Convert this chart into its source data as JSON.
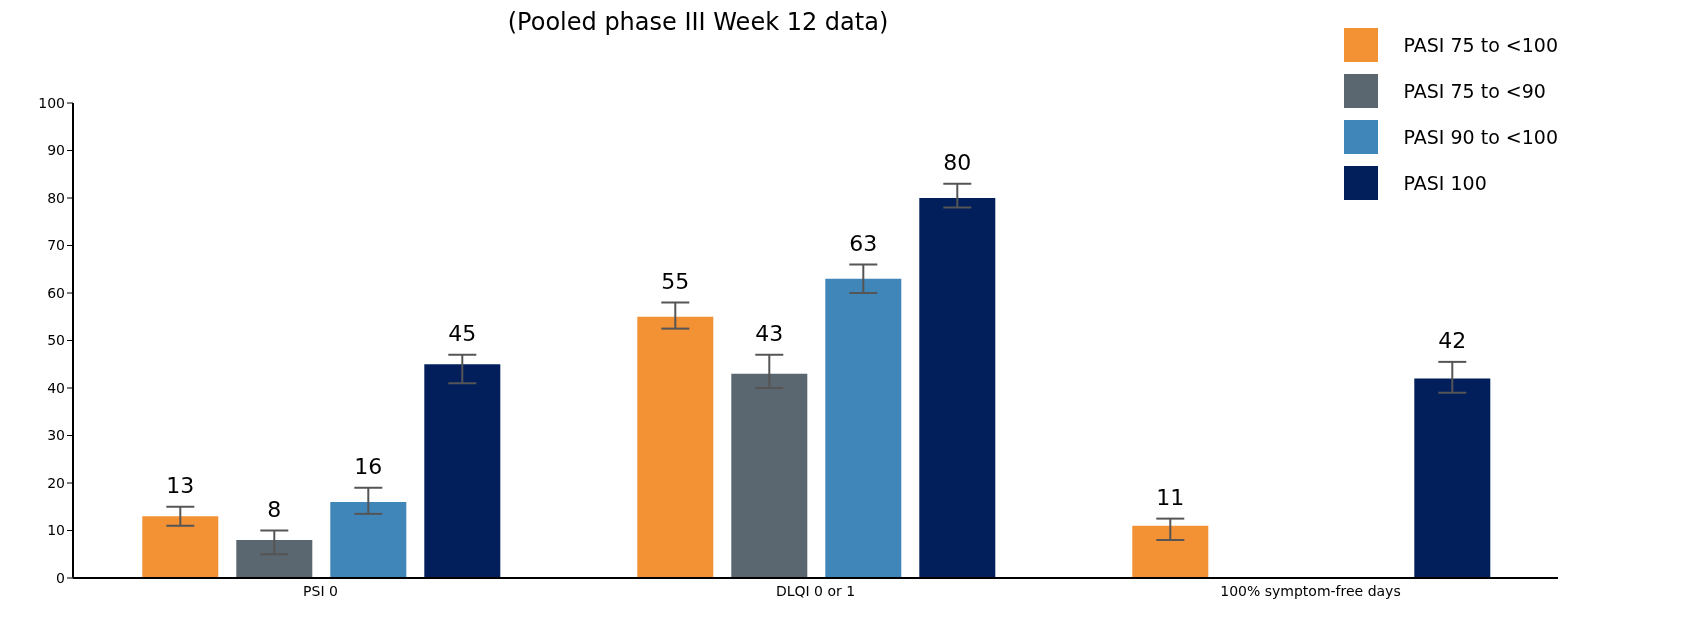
{
  "chart_data": {
    "type": "bar",
    "title": "(Pooled phase III Week 12 data)",
    "categories": [
      "PSI 0",
      "DLQI 0 or 1",
      "100% symptom-free days"
    ],
    "series": [
      {
        "name": "PASI 75 to <100",
        "color": "#f39135",
        "values": [
          13,
          55,
          11
        ],
        "errors": [
          [
            11,
            15
          ],
          [
            52.5,
            58
          ],
          [
            8,
            12.5
          ]
        ]
      },
      {
        "name": "PASI 75 to <90",
        "color": "#5a6670",
        "values": [
          8,
          43,
          null
        ],
        "errors": [
          [
            5,
            10
          ],
          [
            40,
            47
          ],
          null
        ]
      },
      {
        "name": "PASI 90 to <100",
        "color": "#4186b9",
        "values": [
          16,
          63,
          null
        ],
        "errors": [
          [
            13.5,
            19
          ],
          [
            60,
            66
          ],
          null
        ]
      },
      {
        "name": "PASI 100",
        "color": "#021f5c",
        "values": [
          45,
          80,
          42
        ],
        "errors": [
          [
            41,
            47
          ],
          [
            78,
            83
          ],
          [
            39,
            45.5
          ]
        ]
      }
    ],
    "ylim": [
      0,
      100
    ],
    "yticks": [
      0,
      10,
      20,
      30,
      40,
      50,
      60,
      70,
      80,
      90,
      100
    ],
    "grid": false,
    "legend": "top right",
    "data_labels": true
  }
}
